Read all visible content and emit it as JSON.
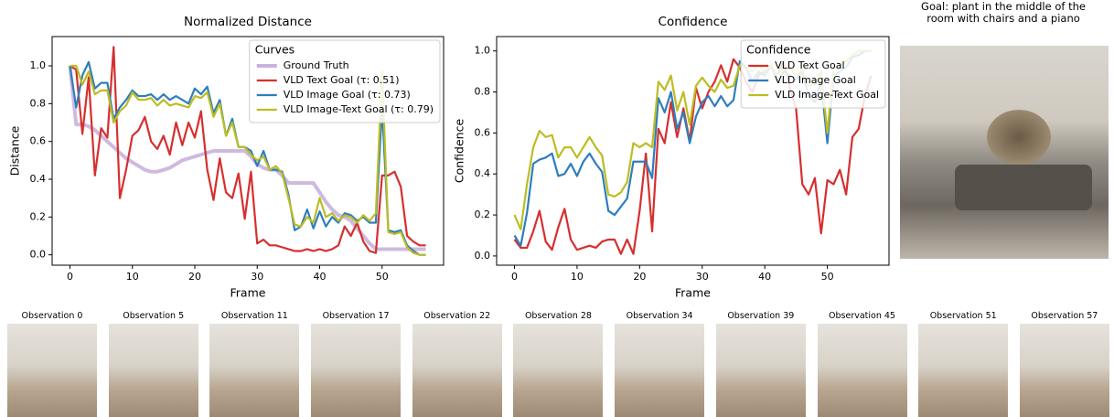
{
  "chart_data": [
    {
      "type": "line",
      "title": "Normalized Distance",
      "xlabel": "Frame",
      "ylabel": "Distance",
      "legend_title": "Curves",
      "legend": "upper right",
      "x": [
        0,
        1,
        2,
        3,
        4,
        5,
        6,
        7,
        8,
        9,
        10,
        11,
        12,
        13,
        14,
        15,
        16,
        17,
        18,
        19,
        20,
        21,
        22,
        23,
        24,
        25,
        26,
        27,
        28,
        29,
        30,
        31,
        32,
        33,
        34,
        35,
        36,
        37,
        38,
        39,
        40,
        41,
        42,
        43,
        44,
        45,
        46,
        47,
        48,
        49,
        50,
        51,
        52,
        53,
        54,
        55,
        56,
        57
      ],
      "xlim": [
        -2.85,
        59.85
      ],
      "xticks": [
        0,
        10,
        20,
        30,
        40,
        50
      ],
      "ylim": [
        -0.055,
        1.155
      ],
      "yticks": [
        {
          "value": 0,
          "label": "0.0"
        },
        {
          "value": 0.2,
          "label": "0.2"
        },
        {
          "value": 0.4,
          "label": "0.4"
        },
        {
          "value": 0.6,
          "label": "0.6"
        },
        {
          "value": 0.8,
          "label": "0.8"
        },
        {
          "value": 1,
          "label": "1.0"
        }
      ],
      "series": [
        {
          "name": "Ground Truth",
          "color": "#c9b3dc",
          "values": [
            1.0,
            0.69,
            0.69,
            0.68,
            0.66,
            0.63,
            0.6,
            0.57,
            0.54,
            0.51,
            0.49,
            0.47,
            0.45,
            0.44,
            0.44,
            0.45,
            0.46,
            0.48,
            0.5,
            0.51,
            0.52,
            0.53,
            0.54,
            0.55,
            0.55,
            0.55,
            0.55,
            0.55,
            0.55,
            0.52,
            0.48,
            0.46,
            0.45,
            0.45,
            0.42,
            0.38,
            0.38,
            0.38,
            0.38,
            0.38,
            0.33,
            0.28,
            0.24,
            0.21,
            0.2,
            0.18,
            0.14,
            0.1,
            0.06,
            0.03,
            0.03,
            0.03,
            0.03,
            0.03,
            0.03,
            0.03,
            0.03,
            0.03
          ]
        },
        {
          "name": "VLD Text Goal (τ: 0.51)",
          "color": "#d62f2f",
          "values": [
            1.0,
            0.98,
            0.64,
            0.94,
            0.42,
            0.67,
            0.62,
            1.1,
            0.3,
            0.45,
            0.63,
            0.66,
            0.73,
            0.6,
            0.56,
            0.63,
            0.53,
            0.7,
            0.58,
            0.7,
            0.62,
            0.76,
            0.45,
            0.29,
            0.51,
            0.33,
            0.3,
            0.43,
            0.19,
            0.44,
            0.06,
            0.08,
            0.05,
            0.05,
            0.04,
            0.03,
            0.02,
            0.02,
            0.03,
            0.02,
            0.03,
            0.02,
            0.03,
            0.05,
            0.15,
            0.1,
            0.17,
            0.07,
            0.02,
            0.01,
            0.42,
            0.42,
            0.44,
            0.36,
            0.1,
            0.07,
            0.05,
            0.05
          ]
        },
        {
          "name": "VLD Image Goal (τ: 0.73)",
          "color": "#2e7ebc",
          "values": [
            1.0,
            0.78,
            0.95,
            1.02,
            0.88,
            0.91,
            0.91,
            0.72,
            0.78,
            0.82,
            0.87,
            0.84,
            0.84,
            0.85,
            0.82,
            0.85,
            0.82,
            0.84,
            0.82,
            0.8,
            0.88,
            0.85,
            0.89,
            0.75,
            0.82,
            0.63,
            0.72,
            0.57,
            0.57,
            0.55,
            0.47,
            0.55,
            0.45,
            0.45,
            0.44,
            0.32,
            0.13,
            0.15,
            0.24,
            0.14,
            0.23,
            0.15,
            0.2,
            0.17,
            0.22,
            0.21,
            0.18,
            0.2,
            0.17,
            0.17,
            0.78,
            0.13,
            0.12,
            0.13,
            0.05,
            0.02,
            0.0,
            0.0
          ]
        },
        {
          "name": "VLD Image-Text Goal (τ: 0.79)",
          "color": "#bcbd22",
          "values": [
            1.0,
            1.0,
            0.9,
            0.97,
            0.85,
            0.87,
            0.87,
            0.7,
            0.76,
            0.79,
            0.86,
            0.82,
            0.82,
            0.83,
            0.79,
            0.82,
            0.79,
            0.8,
            0.79,
            0.78,
            0.84,
            0.83,
            0.86,
            0.73,
            0.8,
            0.63,
            0.7,
            0.57,
            0.57,
            0.53,
            0.5,
            0.52,
            0.45,
            0.47,
            0.43,
            0.3,
            0.16,
            0.15,
            0.2,
            0.17,
            0.3,
            0.2,
            0.22,
            0.18,
            0.21,
            0.2,
            0.17,
            0.21,
            0.18,
            0.22,
            0.97,
            0.12,
            0.11,
            0.12,
            0.04,
            0.01,
            0.0,
            0.0
          ]
        }
      ]
    },
    {
      "type": "line",
      "title": "Confidence",
      "xlabel": "Frame",
      "ylabel": "Confidence",
      "legend_title": "Confidence",
      "legend": "upper right",
      "x": [
        0,
        1,
        2,
        3,
        4,
        5,
        6,
        7,
        8,
        9,
        10,
        11,
        12,
        13,
        14,
        15,
        16,
        17,
        18,
        19,
        20,
        21,
        22,
        23,
        24,
        25,
        26,
        27,
        28,
        29,
        30,
        31,
        32,
        33,
        34,
        35,
        36,
        37,
        38,
        39,
        40,
        41,
        42,
        43,
        44,
        45,
        46,
        47,
        48,
        49,
        50,
        51,
        52,
        53,
        54,
        55,
        56,
        57
      ],
      "xlim": [
        -2.85,
        59.85
      ],
      "xticks": [
        0,
        10,
        20,
        30,
        40,
        50
      ],
      "ylim": [
        -0.045,
        1.07
      ],
      "yticks": [
        {
          "value": 0,
          "label": "0.0"
        },
        {
          "value": 0.2,
          "label": "0.2"
        },
        {
          "value": 0.4,
          "label": "0.4"
        },
        {
          "value": 0.6,
          "label": "0.6"
        },
        {
          "value": 0.8,
          "label": "0.8"
        },
        {
          "value": 1,
          "label": "1.0"
        }
      ],
      "series": [
        {
          "name": "VLD Text Goal",
          "color": "#d62f2f",
          "values": [
            0.08,
            0.04,
            0.04,
            0.12,
            0.22,
            0.07,
            0.03,
            0.14,
            0.23,
            0.08,
            0.03,
            0.04,
            0.05,
            0.04,
            0.07,
            0.08,
            0.08,
            0.01,
            0.08,
            0.01,
            0.22,
            0.5,
            0.12,
            0.62,
            0.55,
            0.75,
            0.58,
            0.72,
            0.56,
            0.82,
            0.72,
            0.8,
            0.85,
            0.93,
            0.85,
            0.96,
            0.92,
            0.85,
            0.8,
            0.88,
            0.9,
            0.92,
            0.88,
            0.95,
            0.82,
            0.72,
            0.35,
            0.3,
            0.38,
            0.11,
            0.37,
            0.35,
            0.42,
            0.3,
            0.58,
            0.62,
            0.78,
            0.88
          ]
        },
        {
          "name": "VLD Image Goal",
          "color": "#2e7ebc",
          "values": [
            0.1,
            0.05,
            0.21,
            0.45,
            0.47,
            0.48,
            0.5,
            0.39,
            0.4,
            0.45,
            0.39,
            0.46,
            0.5,
            0.45,
            0.41,
            0.22,
            0.2,
            0.24,
            0.28,
            0.46,
            0.46,
            0.46,
            0.38,
            0.77,
            0.7,
            0.8,
            0.62,
            0.7,
            0.55,
            0.68,
            0.75,
            0.78,
            0.73,
            0.78,
            0.73,
            0.76,
            0.95,
            0.92,
            0.85,
            0.9,
            0.88,
            0.93,
            0.85,
            0.9,
            0.88,
            0.86,
            0.9,
            0.78,
            0.75,
            0.85,
            0.55,
            0.88,
            0.9,
            0.92,
            0.97,
            0.98,
            1.0,
            1.0
          ]
        },
        {
          "name": "VLD Image-Text Goal",
          "color": "#bcbd22",
          "values": [
            0.2,
            0.13,
            0.35,
            0.53,
            0.61,
            0.58,
            0.59,
            0.48,
            0.53,
            0.53,
            0.48,
            0.53,
            0.58,
            0.53,
            0.49,
            0.3,
            0.29,
            0.31,
            0.36,
            0.55,
            0.53,
            0.55,
            0.53,
            0.85,
            0.81,
            0.88,
            0.71,
            0.8,
            0.64,
            0.83,
            0.87,
            0.83,
            0.8,
            0.86,
            0.82,
            0.83,
            0.93,
            0.91,
            0.9,
            0.93,
            0.9,
            0.93,
            0.88,
            0.92,
            0.92,
            0.88,
            0.91,
            0.83,
            0.84,
            0.9,
            0.6,
            0.92,
            0.93,
            0.95,
            0.98,
            1.0,
            1.0,
            1.0
          ]
        }
      ]
    }
  ],
  "goal": {
    "title": "Goal: plant in the middle of the room with chairs and a piano"
  },
  "observations": [
    {
      "label": "Observation 0"
    },
    {
      "label": "Observation 5"
    },
    {
      "label": "Observation 11"
    },
    {
      "label": "Observation 17"
    },
    {
      "label": "Observation 22"
    },
    {
      "label": "Observation 28"
    },
    {
      "label": "Observation 34"
    },
    {
      "label": "Observation 39"
    },
    {
      "label": "Observation 45"
    },
    {
      "label": "Observation 51"
    },
    {
      "label": "Observation 57"
    }
  ]
}
